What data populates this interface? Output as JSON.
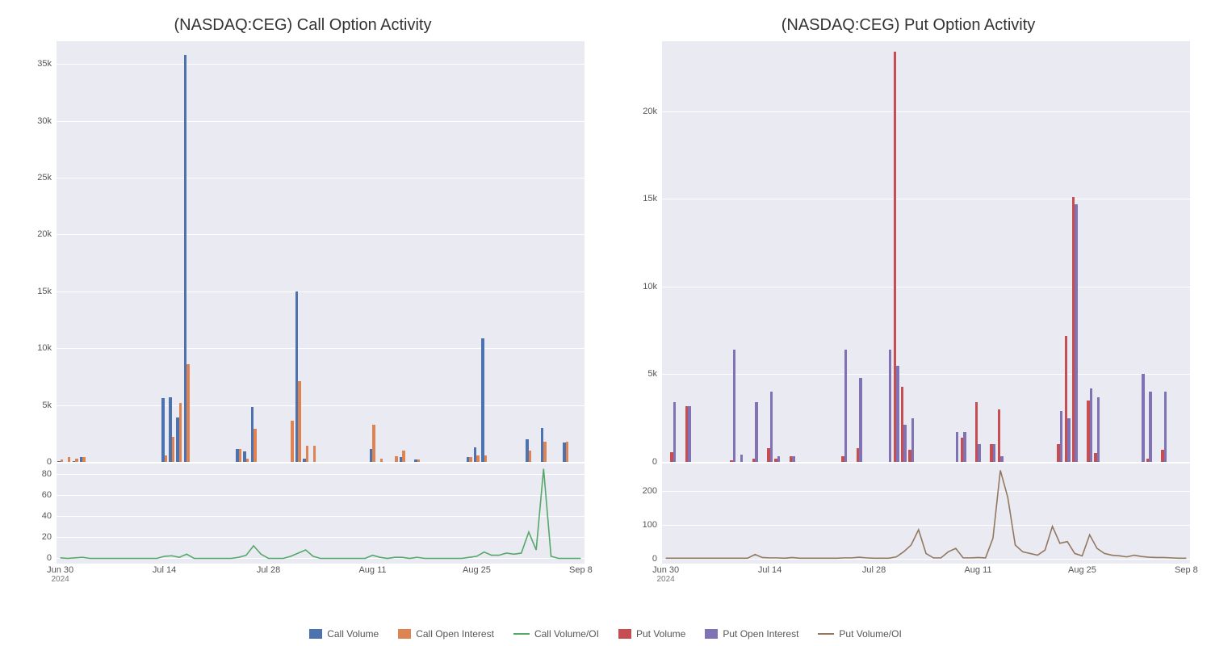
{
  "colors": {
    "plot_bg": "#eaeaf2",
    "grid": "#ffffff",
    "call_volume": "#4c72b0",
    "call_oi": "#dd8452",
    "call_ratio": "#55a868",
    "put_volume": "#c44e52",
    "put_oi": "#8172b3",
    "put_ratio": "#937860"
  },
  "x_axis": {
    "ticks": [
      {
        "label": "Jun 30",
        "sub": "2024",
        "idx": 0
      },
      {
        "label": "Jul 14",
        "idx": 14
      },
      {
        "label": "Jul 28",
        "idx": 28
      },
      {
        "label": "Aug 11",
        "idx": 42
      },
      {
        "label": "Aug 25",
        "idx": 56
      },
      {
        "label": "Sep 8",
        "idx": 70
      }
    ],
    "n_points": 71
  },
  "left_panel": {
    "title": "(NASDAQ:CEG) Call Option Activity",
    "upper": {
      "ylim": [
        0,
        37000
      ],
      "yticks": [
        0,
        5000,
        10000,
        15000,
        20000,
        25000,
        30000,
        35000
      ],
      "ytick_labels": [
        "0",
        "5k",
        "10k",
        "15k",
        "20k",
        "25k",
        "30k",
        "35k"
      ],
      "series_a_color": "#4c72b0",
      "series_b_color": "#dd8452",
      "series_a": [
        100,
        0,
        50,
        450,
        0,
        0,
        0,
        0,
        0,
        0,
        0,
        0,
        0,
        0,
        5600,
        5700,
        3900,
        35800,
        0,
        0,
        0,
        0,
        0,
        0,
        1100,
        900,
        4800,
        0,
        0,
        0,
        0,
        0,
        15000,
        300,
        0,
        0,
        0,
        0,
        0,
        0,
        0,
        0,
        1100,
        0,
        0,
        0,
        400,
        0,
        200,
        0,
        0,
        0,
        0,
        0,
        0,
        400,
        1300,
        10900,
        0,
        0,
        0,
        0,
        0,
        2000,
        0,
        3000,
        0,
        0,
        1700,
        0,
        0
      ],
      "series_b": [
        200,
        450,
        300,
        450,
        0,
        0,
        0,
        0,
        0,
        0,
        0,
        0,
        0,
        0,
        600,
        2200,
        5200,
        8600,
        0,
        0,
        0,
        0,
        0,
        0,
        1100,
        300,
        2900,
        0,
        0,
        0,
        0,
        3600,
        7100,
        1400,
        1400,
        0,
        0,
        0,
        0,
        0,
        0,
        0,
        3300,
        300,
        0,
        500,
        1000,
        0,
        200,
        0,
        0,
        0,
        0,
        0,
        0,
        400,
        600,
        600,
        0,
        0,
        0,
        0,
        0,
        1000,
        0,
        1800,
        0,
        0,
        1800,
        0,
        0
      ]
    },
    "lower": {
      "ylim": [
        -5,
        90
      ],
      "yticks": [
        0,
        20,
        40,
        60,
        80
      ],
      "ytick_labels": [
        "0",
        "20",
        "40",
        "60",
        "80"
      ],
      "line_color": "#55a868",
      "values": [
        0.5,
        0,
        0.5,
        1,
        0,
        0,
        0,
        0,
        0,
        0,
        0,
        0,
        0,
        0,
        2,
        2.5,
        1,
        4,
        0,
        0,
        0,
        0,
        0,
        0,
        1,
        3,
        12,
        4,
        0,
        0,
        0,
        2,
        5,
        8,
        2,
        0,
        0,
        0,
        0,
        0,
        0,
        0,
        3,
        1,
        0,
        1,
        1,
        0,
        1,
        0,
        0,
        0,
        0,
        0,
        0,
        1,
        2,
        6,
        3,
        3,
        5,
        4,
        5,
        25,
        8,
        85,
        2,
        0,
        0,
        0,
        0
      ]
    }
  },
  "right_panel": {
    "title": "(NASDAQ:CEG) Put Option Activity",
    "upper": {
      "ylim": [
        0,
        24000
      ],
      "yticks": [
        0,
        5000,
        10000,
        15000,
        20000
      ],
      "ytick_labels": [
        "0",
        "5k",
        "10k",
        "15k",
        "20k"
      ],
      "series_a_color": "#c44e52",
      "series_b_color": "#8172b3",
      "series_a": [
        0,
        550,
        0,
        3200,
        0,
        0,
        0,
        0,
        0,
        100,
        0,
        0,
        200,
        0,
        800,
        200,
        0,
        300,
        0,
        0,
        0,
        0,
        0,
        0,
        300,
        0,
        800,
        0,
        0,
        0,
        0,
        23400,
        4300,
        700,
        0,
        0,
        0,
        0,
        0,
        0,
        1400,
        0,
        3400,
        0,
        1000,
        3000,
        0,
        0,
        0,
        0,
        0,
        0,
        0,
        1000,
        7200,
        15100,
        0,
        3500,
        500,
        0,
        0,
        0,
        0,
        0,
        0,
        200,
        0,
        700,
        0,
        0,
        0
      ],
      "series_b": [
        0,
        3400,
        0,
        3200,
        0,
        0,
        0,
        0,
        0,
        6400,
        400,
        0,
        3400,
        0,
        4000,
        300,
        0,
        300,
        0,
        0,
        0,
        0,
        0,
        0,
        6400,
        0,
        4800,
        0,
        0,
        0,
        6400,
        5500,
        2100,
        2500,
        0,
        0,
        0,
        0,
        0,
        1700,
        1700,
        0,
        1000,
        0,
        1000,
        300,
        0,
        0,
        0,
        0,
        0,
        0,
        0,
        2900,
        2500,
        14700,
        0,
        4200,
        3700,
        0,
        0,
        0,
        0,
        0,
        5000,
        4000,
        0,
        4000,
        0,
        0,
        0
      ]
    },
    "lower": {
      "ylim": [
        -15,
        280
      ],
      "yticks": [
        0,
        100,
        200
      ],
      "ytick_labels": [
        "0",
        "100",
        "200"
      ],
      "line_color": "#937860",
      "values": [
        1,
        1,
        1,
        1,
        1,
        1,
        1,
        1,
        1,
        1,
        1,
        1,
        12,
        3,
        2,
        2,
        1,
        3,
        1,
        1,
        1,
        1,
        1,
        1,
        2,
        2,
        4,
        2,
        1,
        1,
        1,
        5,
        20,
        40,
        85,
        15,
        2,
        2,
        20,
        30,
        2,
        2,
        3,
        2,
        60,
        260,
        180,
        40,
        20,
        15,
        10,
        25,
        95,
        45,
        50,
        15,
        8,
        70,
        30,
        15,
        10,
        8,
        5,
        10,
        6,
        4,
        3,
        3,
        2,
        1,
        1
      ]
    }
  },
  "legend": [
    {
      "label": "Call Volume",
      "type": "box",
      "color": "#4c72b0"
    },
    {
      "label": "Call Open Interest",
      "type": "box",
      "color": "#dd8452"
    },
    {
      "label": "Call Volume/OI",
      "type": "line",
      "color": "#55a868"
    },
    {
      "label": "Put Volume",
      "type": "box",
      "color": "#c44e52"
    },
    {
      "label": "Put Open Interest",
      "type": "box",
      "color": "#8172b3"
    },
    {
      "label": "Put Volume/OI",
      "type": "line",
      "color": "#937860"
    }
  ]
}
